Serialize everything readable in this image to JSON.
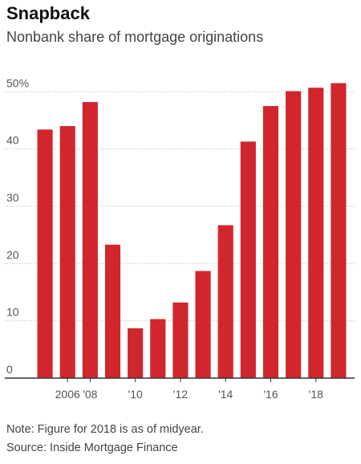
{
  "chart_data": {
    "type": "bar",
    "title": "Snapback",
    "subtitle": "Nonbank share of mortgage originations",
    "categories": [
      null,
      "2006",
      "'08",
      null,
      "'10",
      null,
      "'12",
      null,
      "'14",
      null,
      "'16",
      null,
      "'18",
      null
    ],
    "values": [
      43.4,
      44.0,
      48.2,
      23.3,
      8.7,
      10.3,
      13.2,
      18.7,
      26.7,
      41.3,
      47.5,
      50.1,
      50.7,
      51.5
    ],
    "color": "#d1262d",
    "ylim": [
      0,
      52
    ],
    "yticks": [
      0,
      10,
      20,
      30,
      40,
      {
        "value": 50,
        "label": "50%"
      }
    ],
    "grid": true,
    "notes": [
      "Note: Figure for 2018 is as of midyear.",
      "Source: Inside Mortgage Finance"
    ]
  }
}
